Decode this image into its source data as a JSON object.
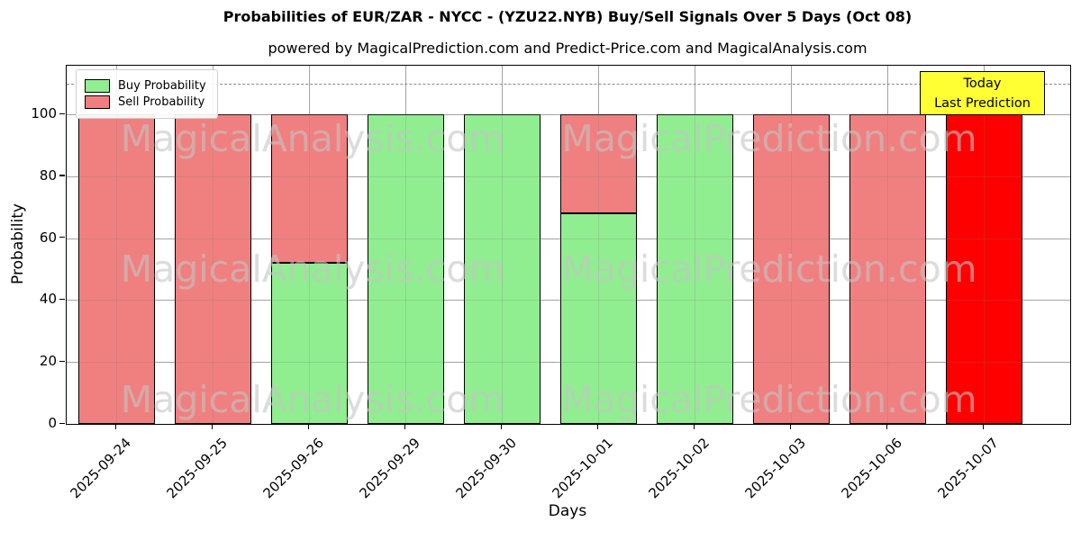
{
  "title": "Probabilities of EUR/ZAR - NYCC -  (YZU22.NYB) Buy/Sell Signals Over 5 Days (Oct 08)",
  "subtitle": "powered by MagicalPrediction.com and Predict-Price.com and MagicalAnalysis.com",
  "watermarks": {
    "left_text": "MagicalAnalysis.com",
    "right_text": "MagicalPrediction.com"
  },
  "annotation": {
    "line1": "Today",
    "line2": "Last Prediction",
    "bg_color": "#ffff33",
    "border_color": "#000000"
  },
  "chart_data": {
    "type": "bar",
    "stacked": true,
    "title": "Probabilities of EUR/ZAR - NYCC -  (YZU22.NYB) Buy/Sell Signals Over 5 Days (Oct 08)",
    "xlabel": "Days",
    "ylabel": "Probability",
    "categories": [
      "2025-09-24",
      "2025-09-25",
      "2025-09-26",
      "2025-09-29",
      "2025-09-30",
      "2025-10-01",
      "2025-10-02",
      "2025-10-03",
      "2025-10-06",
      "2025-10-07"
    ],
    "series": [
      {
        "name": "Buy Probability",
        "color": "#90ee90",
        "values": [
          0,
          0,
          52,
          100,
          100,
          68,
          100,
          0,
          0,
          0
        ]
      },
      {
        "name": "Sell Probability",
        "color": "#f08080",
        "values": [
          100,
          100,
          48,
          0,
          0,
          32,
          0,
          100,
          100,
          100
        ]
      }
    ],
    "today_index": 9,
    "today_color": "#ff0000",
    "bar_edge_color": "#000000",
    "yticks": [
      0,
      20,
      40,
      60,
      80,
      100
    ],
    "ylim": [
      0,
      115.7
    ],
    "dashed_line_y": 110,
    "grid": true,
    "legend_position": "upper left"
  }
}
